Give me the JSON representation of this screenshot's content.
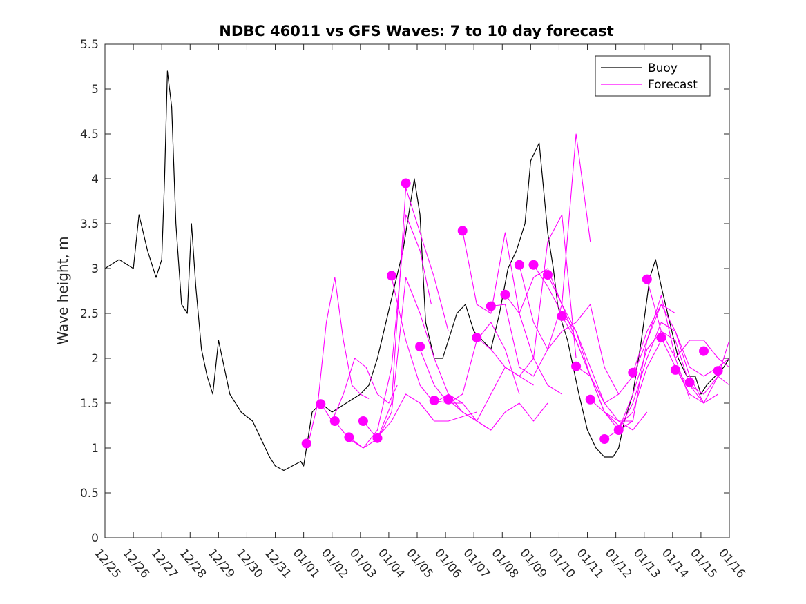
{
  "chart_data": {
    "type": "line",
    "title": "NDBC 46011 vs GFS Waves: 7 to 10 day forecast",
    "xlabel": "",
    "ylabel": "Wave height, m",
    "xlim": [
      0,
      22
    ],
    "ylim": [
      0,
      5.5
    ],
    "yticks": [
      0,
      0.5,
      1,
      1.5,
      2,
      2.5,
      3,
      3.5,
      4,
      4.5,
      5,
      5.5
    ],
    "ytick_labels": [
      "0",
      "0.5",
      "1",
      "1.5",
      "2",
      "2.5",
      "3",
      "3.5",
      "4",
      "4.5",
      "5",
      "5.5"
    ],
    "xticks": [
      0,
      1,
      2,
      3,
      4,
      5,
      6,
      7,
      8,
      9,
      10,
      11,
      12,
      13,
      14,
      15,
      16,
      17,
      18,
      19,
      20,
      21,
      22
    ],
    "xtick_labels": [
      "12/25",
      "12/26",
      "12/27",
      "12/28",
      "12/29",
      "12/30",
      "12/31",
      "01/01",
      "01/02",
      "01/03",
      "01/04",
      "01/05",
      "01/06",
      "01/07",
      "01/08",
      "01/09",
      "01/10",
      "01/11",
      "01/12",
      "01/13",
      "01/14",
      "01/15",
      "01/16"
    ],
    "x_units": "days since 12/25",
    "legend": {
      "position": "top-right",
      "entries": [
        {
          "label": "Buoy",
          "color": "#000000"
        },
        {
          "label": "Forecast",
          "color": "#ff00ff"
        }
      ]
    },
    "series": [
      {
        "name": "Buoy",
        "color": "#000000",
        "x": [
          0,
          0.5,
          1,
          1.2,
          1.5,
          1.8,
          2,
          2.1,
          2.2,
          2.35,
          2.5,
          2.7,
          2.9,
          3.05,
          3.2,
          3.4,
          3.6,
          3.8,
          4,
          4.4,
          4.8,
          5.2,
          5.5,
          5.8,
          6,
          6.3,
          6.6,
          6.9,
          7,
          7.3,
          7.6,
          8,
          8.5,
          9,
          9.3,
          9.6,
          9.9,
          10.2,
          10.5,
          10.7,
          10.9,
          11.1,
          11.3,
          11.6,
          11.9,
          12.1,
          12.4,
          12.7,
          13,
          13.3,
          13.6,
          13.9,
          14.2,
          14.5,
          14.8,
          15,
          15.3,
          15.6,
          15.8,
          15.95,
          16.1,
          16.3,
          16.5,
          16.7,
          17,
          17.3,
          17.6,
          17.9,
          18.1,
          18.3,
          18.6,
          18.9,
          19.2,
          19.4,
          19.6,
          19.9,
          20.2,
          20.5,
          20.8,
          21,
          21.2,
          21.5,
          21.8,
          22
        ],
        "values": [
          3.0,
          3.1,
          3.0,
          3.6,
          3.2,
          2.9,
          3.1,
          4.0,
          5.2,
          4.8,
          3.5,
          2.6,
          2.5,
          3.5,
          2.8,
          2.1,
          1.8,
          1.6,
          2.2,
          1.6,
          1.4,
          1.3,
          1.1,
          0.9,
          0.8,
          0.75,
          0.8,
          0.85,
          0.8,
          1.4,
          1.5,
          1.4,
          1.5,
          1.6,
          1.7,
          2.0,
          2.4,
          2.8,
          3.2,
          3.6,
          4.0,
          3.6,
          2.4,
          2.0,
          2.0,
          2.2,
          2.5,
          2.6,
          2.3,
          2.2,
          2.1,
          2.5,
          3.0,
          3.2,
          3.5,
          4.2,
          4.4,
          3.4,
          3.0,
          2.6,
          2.4,
          2.2,
          1.9,
          1.6,
          1.2,
          1.0,
          0.9,
          0.9,
          1.0,
          1.3,
          1.6,
          2.2,
          2.9,
          3.1,
          2.8,
          2.4,
          2.0,
          1.8,
          1.8,
          1.6,
          1.7,
          1.8,
          1.9,
          2.0
        ]
      },
      {
        "name": "Forecast",
        "color": "#ff00ff",
        "runs": [
          {
            "x": [
              7.2,
              7.5,
              7.8,
              8.1,
              8.4,
              8.7,
              9.0,
              9.3
            ],
            "values": [
              1.1,
              1.5,
              2.4,
              2.9,
              2.2,
              1.7,
              1.6,
              1.55
            ]
          },
          {
            "x": [
              7.6,
              8.0,
              8.4,
              8.8,
              9.2,
              9.6,
              10.0,
              10.3
            ],
            "values": [
              1.5,
              1.3,
              1.6,
              2.0,
              1.9,
              1.6,
              1.5,
              1.7
            ]
          },
          {
            "x": [
              8.1,
              8.6,
              9.1,
              9.6,
              10.1,
              10.6,
              11.1,
              11.5
            ],
            "values": [
              1.3,
              1.1,
              1.0,
              1.2,
              1.9,
              3.6,
              3.2,
              2.6
            ]
          },
          {
            "x": [
              8.6,
              9.1,
              9.6,
              10.1,
              10.6,
              11.1,
              11.6,
              12.1
            ],
            "values": [
              1.12,
              1.0,
              1.1,
              1.5,
              3.9,
              3.4,
              2.9,
              2.3
            ]
          },
          {
            "x": [
              9.1,
              9.6,
              10.1,
              10.6,
              11.1,
              11.6,
              12.1,
              12.6
            ],
            "values": [
              1.3,
              1.1,
              1.4,
              2.9,
              2.5,
              2.0,
              1.6,
              1.5
            ]
          },
          {
            "x": [
              9.6,
              10.1,
              10.6,
              11.1,
              11.6,
              12.1,
              12.6,
              13.1
            ],
            "values": [
              1.12,
              1.3,
              1.6,
              1.5,
              1.3,
              1.3,
              1.35,
              1.4
            ]
          },
          {
            "x": [
              10.1,
              10.6,
              11.1,
              11.6,
              12.1,
              12.6,
              13.1,
              13.6
            ],
            "values": [
              2.9,
              2.2,
              1.7,
              1.5,
              1.6,
              1.4,
              1.3,
              1.2
            ]
          },
          {
            "x": [
              11.1,
              11.6,
              12.1,
              12.6,
              13.1,
              13.6,
              14.1,
              14.6
            ],
            "values": [
              2.1,
              1.7,
              1.5,
              1.6,
              2.2,
              2.4,
              2.1,
              1.6
            ]
          },
          {
            "x": [
              11.6,
              12.1,
              12.6,
              13.1,
              13.6,
              14.1,
              14.6,
              15.1
            ],
            "values": [
              1.53,
              1.5,
              1.5,
              1.3,
              1.6,
              1.9,
              1.8,
              1.7
            ]
          },
          {
            "x": [
              12.1,
              12.6,
              13.1,
              13.6,
              14.1,
              14.6,
              15.1,
              15.6
            ],
            "values": [
              1.54,
              1.4,
              1.3,
              1.2,
              1.4,
              1.5,
              1.3,
              1.5
            ]
          },
          {
            "x": [
              12.6,
              13.1,
              13.6,
              14.1,
              14.6,
              15.1,
              15.6,
              16.1
            ],
            "values": [
              3.42,
              2.6,
              2.5,
              3.4,
              2.5,
              2.0,
              1.7,
              1.6
            ]
          },
          {
            "x": [
              13.1,
              13.6,
              14.1,
              14.6,
              15.1,
              15.6,
              16.1,
              16.6
            ],
            "values": [
              2.23,
              2.1,
              1.9,
              1.8,
              2.0,
              3.3,
              3.6,
              2.0
            ]
          },
          {
            "x": [
              13.6,
              14.1,
              14.6,
              15.1,
              15.6,
              16.1,
              16.6,
              17.1
            ],
            "values": [
              2.58,
              2.6,
              1.9,
              1.8,
              2.1,
              2.6,
              4.5,
              3.3
            ]
          },
          {
            "x": [
              14.1,
              14.6,
              15.1,
              15.6,
              16.1,
              16.6,
              17.1,
              17.6
            ],
            "values": [
              2.71,
              2.5,
              2.9,
              3.0,
              2.6,
              2.3,
              1.9,
              1.5
            ]
          },
          {
            "x": [
              14.6,
              15.1,
              15.6,
              16.1,
              16.6,
              17.1,
              17.6,
              18.1
            ],
            "values": [
              3.04,
              2.4,
              2.1,
              2.3,
              2.4,
              2.6,
              1.9,
              1.6
            ]
          },
          {
            "x": [
              15.1,
              15.6,
              16.1,
              16.6,
              17.1,
              17.6,
              18.1,
              18.6
            ],
            "values": [
              3.04,
              2.8,
              2.5,
              2.3,
              1.8,
              1.4,
              1.3,
              1.3
            ]
          },
          {
            "x": [
              15.6,
              16.1,
              16.6,
              17.1,
              17.6,
              18.1,
              18.6,
              19.1
            ],
            "values": [
              2.93,
              2.6,
              2.2,
              1.8,
              1.5,
              1.3,
              1.2,
              1.4
            ]
          },
          {
            "x": [
              16.1,
              16.6,
              17.1,
              17.6,
              18.1,
              18.6,
              19.1,
              19.6
            ],
            "values": [
              2.47,
              2.2,
              1.8,
              1.4,
              1.25,
              1.4,
              1.9,
              2.2
            ]
          },
          {
            "x": [
              16.6,
              17.1,
              17.6,
              18.1,
              18.6,
              19.1,
              19.6,
              20.1
            ],
            "values": [
              1.91,
              1.8,
              1.5,
              1.6,
              1.8,
              2.2,
              2.6,
              2.5
            ]
          },
          {
            "x": [
              17.1,
              17.6,
              18.1,
              18.6,
              19.1,
              19.6,
              20.1,
              20.6
            ],
            "values": [
              1.54,
              1.4,
              1.2,
              1.3,
              2.2,
              2.7,
              2.0,
              1.55
            ]
          },
          {
            "x": [
              17.6,
              18.1,
              18.6,
              19.1,
              19.6,
              20.1,
              20.6,
              21.1
            ],
            "values": [
              1.1,
              1.2,
              1.5,
              2.0,
              2.4,
              2.3,
              1.8,
              1.5
            ]
          },
          {
            "x": [
              18.1,
              18.6,
              19.1,
              19.6,
              20.1,
              20.6,
              21.1,
              21.6
            ],
            "values": [
              1.2,
              1.6,
              2.1,
              2.3,
              2.2,
              1.7,
              1.5,
              1.6
            ]
          },
          {
            "x": [
              18.6,
              19.1,
              19.6,
              20.1,
              20.6,
              21.1,
              21.6,
              22.0
            ],
            "values": [
              1.84,
              2.3,
              2.6,
              2.3,
              1.9,
              1.8,
              1.9,
              2.0
            ]
          },
          {
            "x": [
              19.1,
              19.6,
              20.1,
              20.6,
              21.1,
              21.6,
              22.0
            ],
            "values": [
              2.88,
              2.3,
              2.0,
              2.2,
              2.2,
              2.0,
              1.9
            ]
          },
          {
            "x": [
              19.6,
              20.1,
              20.6,
              21.1,
              21.6,
              22.0
            ],
            "values": [
              2.23,
              1.9,
              1.6,
              1.5,
              1.8,
              2.2
            ]
          },
          {
            "x": [
              20.1,
              20.6,
              21.1,
              21.6,
              22.0
            ],
            "values": [
              1.87,
              1.7,
              1.6,
              1.8,
              1.7
            ]
          }
        ]
      }
    ],
    "markers": {
      "color": "#ff00ff",
      "points": [
        {
          "x": 7.1,
          "y": 1.05
        },
        {
          "x": 7.6,
          "y": 1.49
        },
        {
          "x": 8.1,
          "y": 1.3
        },
        {
          "x": 8.6,
          "y": 1.12
        },
        {
          "x": 9.1,
          "y": 1.3
        },
        {
          "x": 9.6,
          "y": 1.11
        },
        {
          "x": 10.1,
          "y": 2.92
        },
        {
          "x": 10.6,
          "y": 3.95
        },
        {
          "x": 11.1,
          "y": 2.13
        },
        {
          "x": 11.6,
          "y": 1.53
        },
        {
          "x": 12.1,
          "y": 1.54
        },
        {
          "x": 12.6,
          "y": 3.42
        },
        {
          "x": 13.1,
          "y": 2.23
        },
        {
          "x": 13.6,
          "y": 2.58
        },
        {
          "x": 14.1,
          "y": 2.71
        },
        {
          "x": 14.6,
          "y": 3.04
        },
        {
          "x": 15.1,
          "y": 3.04
        },
        {
          "x": 15.6,
          "y": 2.93
        },
        {
          "x": 16.1,
          "y": 2.47
        },
        {
          "x": 16.6,
          "y": 1.91
        },
        {
          "x": 17.1,
          "y": 1.54
        },
        {
          "x": 17.6,
          "y": 1.1
        },
        {
          "x": 18.1,
          "y": 1.2
        },
        {
          "x": 18.6,
          "y": 1.84
        },
        {
          "x": 19.1,
          "y": 2.88
        },
        {
          "x": 19.6,
          "y": 2.23
        },
        {
          "x": 20.1,
          "y": 1.87
        },
        {
          "x": 20.6,
          "y": 1.73
        },
        {
          "x": 21.1,
          "y": 2.08
        },
        {
          "x": 21.6,
          "y": 1.86
        }
      ]
    }
  }
}
